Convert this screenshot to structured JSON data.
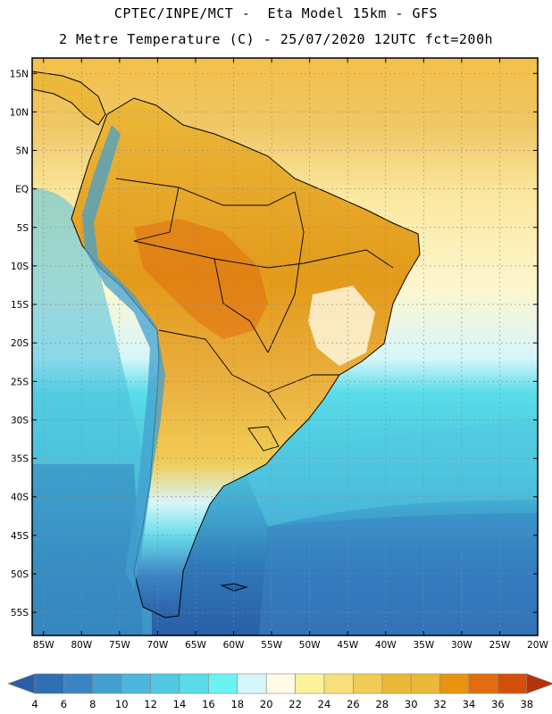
{
  "header": {
    "line1": "CPTEC/INPE/MCT -  Eta Model 15km - GFS",
    "line2": "2 Metre Temperature (C) - 25/07/2020 12UTC fct=200h"
  },
  "map": {
    "lat_labels": [
      "15N",
      "10N",
      "5N",
      "EQ",
      "5S",
      "10S",
      "15S",
      "20S",
      "25S",
      "30S",
      "35S",
      "40S",
      "45S",
      "50S",
      "55S"
    ],
    "lon_labels": [
      "85W",
      "80W",
      "75W",
      "70W",
      "65W",
      "60W",
      "55W",
      "50W",
      "45W",
      "40W",
      "35W",
      "30W",
      "25W",
      "20W"
    ],
    "lat_values": [
      15,
      10,
      5,
      0,
      -5,
      -10,
      -15,
      -20,
      -25,
      -30,
      -35,
      -40,
      -45,
      -50,
      -55
    ],
    "lon_values": [
      -85,
      -80,
      -75,
      -70,
      -65,
      -60,
      -55,
      -50,
      -45,
      -40,
      -35,
      -30,
      -25,
      -20
    ]
  },
  "colorbar": {
    "unit": "C",
    "levels": [
      "4",
      "6",
      "8",
      "10",
      "12",
      "14",
      "16",
      "18",
      "20",
      "22",
      "24",
      "26",
      "28",
      "30",
      "32",
      "34",
      "36",
      "38"
    ],
    "colors": [
      "#2f6fb2",
      "#3b84c4",
      "#43a0cf",
      "#4cb6dc",
      "#52c8e3",
      "#5adce9",
      "#6bf2f4",
      "#d6f6fb",
      "#fffbe6",
      "#fdf29c",
      "#f7e07c",
      "#f1cc55",
      "#ebb83a",
      "#ebb83a",
      "#e9930f",
      "#e06d0f",
      "#d4500a",
      "#c0380a"
    ],
    "low_extend_color": "#2a5fa8",
    "high_extend_color": "#b4320a"
  }
}
